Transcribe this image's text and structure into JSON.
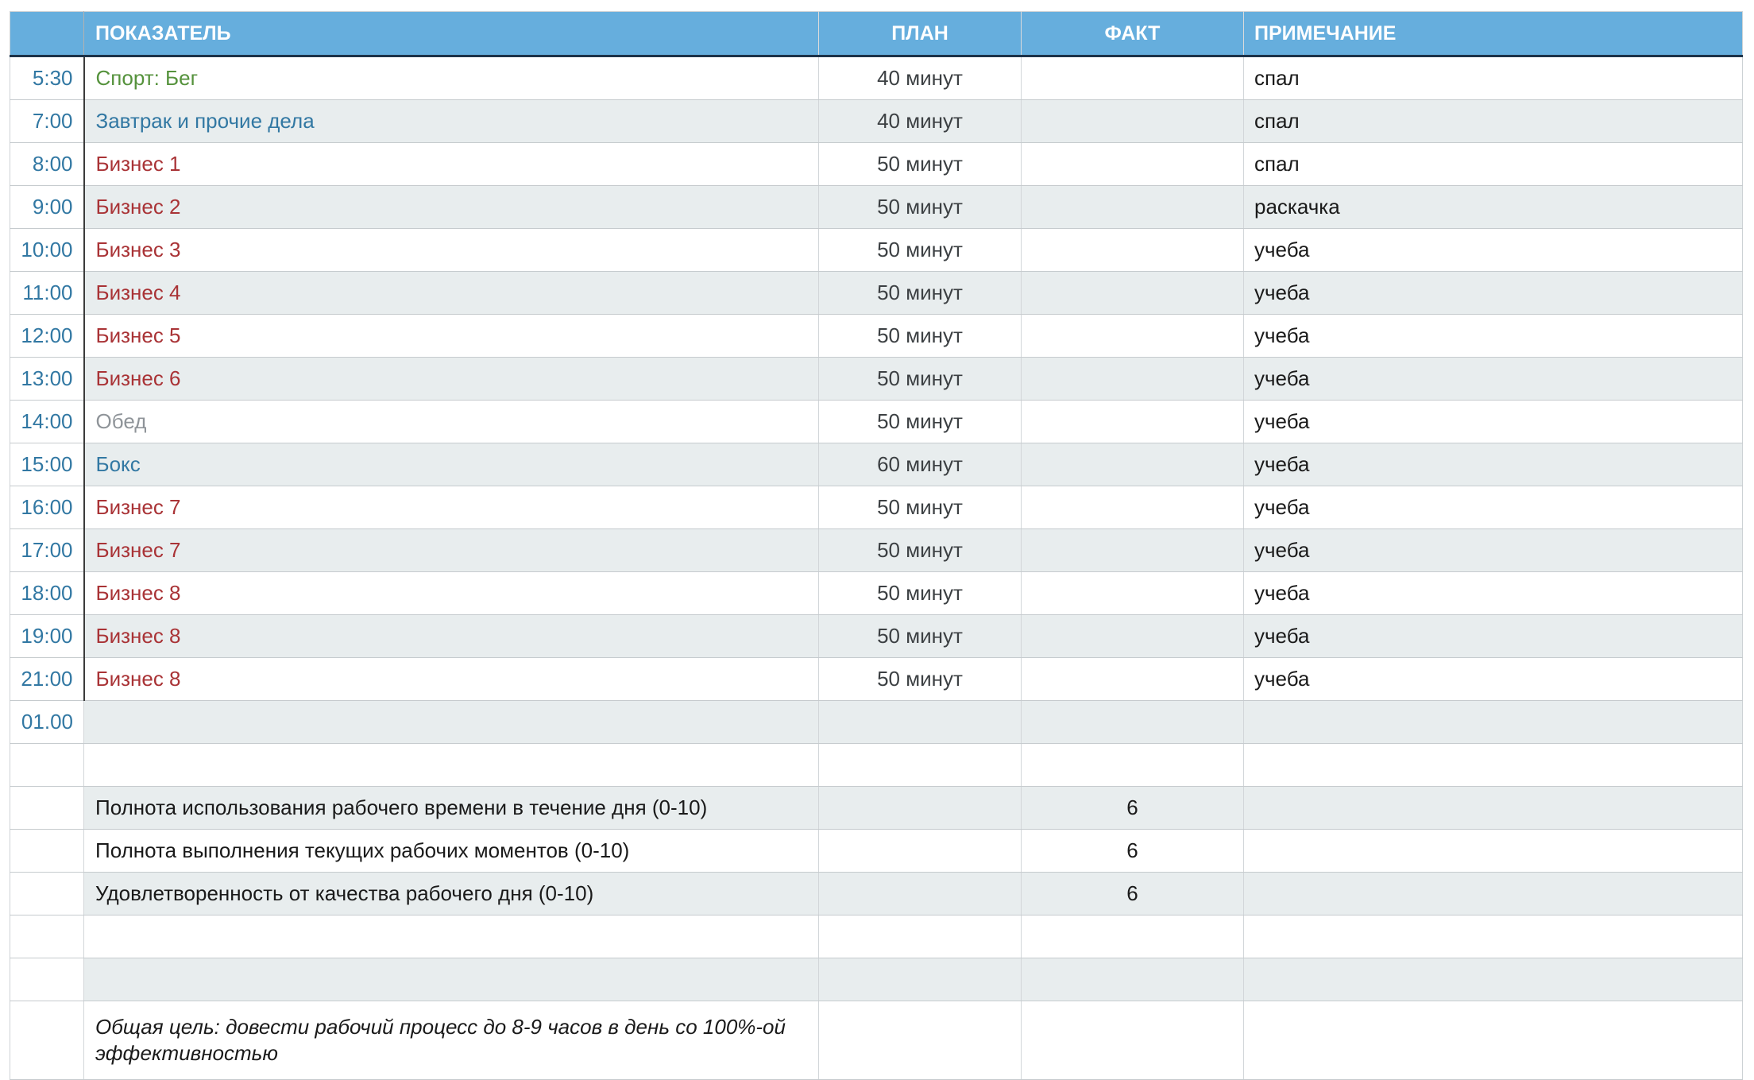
{
  "palette": {
    "header_bg": "#66aedd",
    "header_text": "#ffffff",
    "header_underline": "#1d3349",
    "stripe_bg": "#e8edee",
    "grid_line": "#c6cbce",
    "time_text": "#3278a3",
    "activity_green": "#55923c",
    "activity_blue": "#3278a3",
    "activity_red": "#a93336",
    "activity_muted": "#8f9499",
    "plan_text": "#3c4043",
    "body_text": "#1a1a1a"
  },
  "table": {
    "columns": [
      "",
      "ПОКАЗАТЕЛЬ",
      "ПЛАН",
      "ФАКТ",
      "ПРИМЕЧАНИЕ"
    ],
    "rows": [
      {
        "time": "5:30",
        "indicator": "Спорт: Бег",
        "color": "green",
        "plan": "40 минут",
        "fact": "",
        "note": "спал"
      },
      {
        "time": "7:00",
        "indicator": "Завтрак и прочие дела",
        "color": "blue",
        "plan": "40 минут",
        "fact": "",
        "note": "спал"
      },
      {
        "time": "8:00",
        "indicator": "Бизнес 1",
        "color": "red",
        "plan": "50 минут",
        "fact": "",
        "note": "спал"
      },
      {
        "time": "9:00",
        "indicator": "Бизнес 2",
        "color": "red",
        "plan": "50 минут",
        "fact": "",
        "note": "раскачка"
      },
      {
        "time": "10:00",
        "indicator": "Бизнес 3",
        "color": "red",
        "plan": "50 минут",
        "fact": "",
        "note": "учеба"
      },
      {
        "time": "11:00",
        "indicator": "Бизнес 4",
        "color": "red",
        "plan": "50 минут",
        "fact": "",
        "note": "учеба"
      },
      {
        "time": "12:00",
        "indicator": "Бизнес 5",
        "color": "red",
        "plan": "50 минут",
        "fact": "",
        "note": "учеба"
      },
      {
        "time": "13:00",
        "indicator": "Бизнес 6",
        "color": "red",
        "plan": "50 минут",
        "fact": "",
        "note": "учеба"
      },
      {
        "time": "14:00",
        "indicator": "Обед",
        "color": "muted",
        "plan": "50 минут",
        "fact": "",
        "note": "учеба"
      },
      {
        "time": "15:00",
        "indicator": "Бокс",
        "color": "blue",
        "plan": "60 минут",
        "fact": "",
        "note": "учеба"
      },
      {
        "time": "16:00",
        "indicator": "Бизнес 7",
        "color": "red",
        "plan": "50 минут",
        "fact": "",
        "note": "учеба"
      },
      {
        "time": "17:00",
        "indicator": "Бизнес 7",
        "color": "red",
        "plan": "50 минут",
        "fact": "",
        "note": "учеба"
      },
      {
        "time": "18:00",
        "indicator": "Бизнес 8",
        "color": "red",
        "plan": "50 минут",
        "fact": "",
        "note": "учеба"
      },
      {
        "time": "19:00",
        "indicator": "Бизнес 8",
        "color": "red",
        "plan": "50 минут",
        "fact": "",
        "note": "учеба"
      },
      {
        "time": "21:00",
        "indicator": "Бизнес 8",
        "color": "red",
        "plan": "50 минут",
        "fact": "",
        "note": "учеба"
      },
      {
        "time": "01.00",
        "indicator": "",
        "color": null,
        "plan": "",
        "fact": "",
        "note": ""
      },
      {
        "time": "",
        "indicator": "",
        "color": null,
        "plan": "",
        "fact": "",
        "note": ""
      },
      {
        "time": "",
        "indicator": "Полнота использования рабочего времени в течение дня (0-10)",
        "color": null,
        "plan": "",
        "fact": "6",
        "note": ""
      },
      {
        "time": "",
        "indicator": "Полнота выполнения текущих рабочих моментов (0-10)",
        "color": null,
        "plan": "",
        "fact": "6",
        "note": ""
      },
      {
        "time": "",
        "indicator": "Удовлетворенность от качества рабочего дня (0-10)",
        "color": null,
        "plan": "",
        "fact": "6",
        "note": ""
      },
      {
        "time": "",
        "indicator": "",
        "color": null,
        "plan": "",
        "fact": "",
        "note": ""
      },
      {
        "time": "",
        "indicator": "",
        "color": null,
        "plan": "",
        "fact": "",
        "note": ""
      },
      {
        "time": "",
        "indicator": "Общая цель: довести рабочий процесс до 8-9 часов в день со 100%-ой эффективностью",
        "color": null,
        "plan": "",
        "fact": "",
        "note": "",
        "italic": true
      }
    ]
  }
}
